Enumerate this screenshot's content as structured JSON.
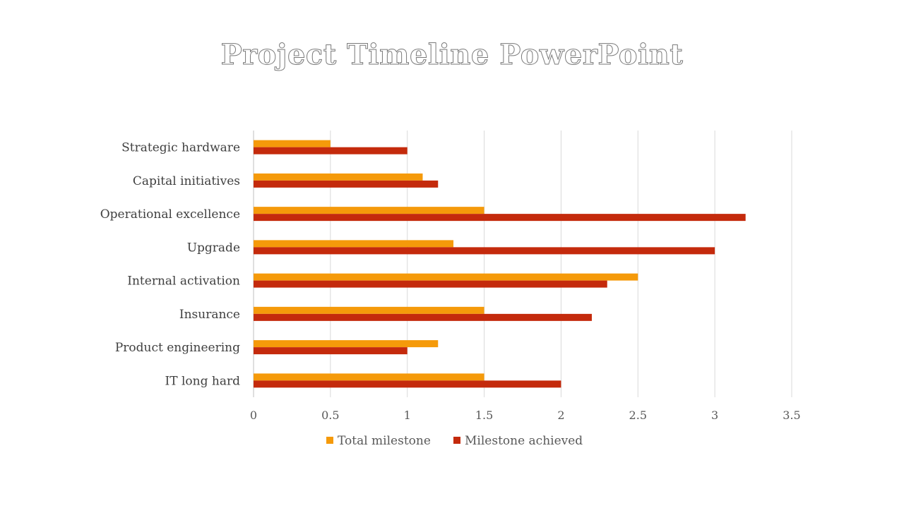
{
  "slide": {
    "title": "Project Timeline PowerPoint"
  },
  "chart_data": {
    "type": "bar",
    "orientation": "horizontal",
    "title": "",
    "xlabel": "",
    "ylabel": "",
    "xlim": [
      0,
      3.5
    ],
    "x_ticks": [
      "0",
      "0.5",
      "1",
      "1.5",
      "2",
      "2.5",
      "3",
      "3.5"
    ],
    "grid": true,
    "legend_position": "bottom",
    "categories": [
      "Strategic hardware",
      "Capital initiatives",
      "Operational excellence",
      "Upgrade",
      "Internal activation",
      "Insurance",
      "Product engineering",
      "IT long hard"
    ],
    "series": [
      {
        "name": "Total milestone",
        "color": "#f59a0a",
        "values": [
          0.5,
          1.1,
          1.5,
          1.3,
          2.5,
          1.5,
          1.2,
          1.5
        ]
      },
      {
        "name": "Milestone achieved",
        "color": "#c42a0c",
        "values": [
          1.0,
          1.2,
          3.2,
          3.0,
          2.3,
          2.2,
          1.0,
          2.0
        ]
      }
    ]
  }
}
